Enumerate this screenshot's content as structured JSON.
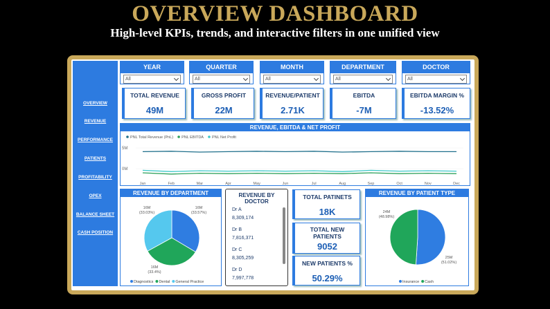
{
  "header": {
    "title": "OVERVIEW DASHBOARD",
    "subtitle": "High-level KPIs, trends, and interactive filters in one unified view"
  },
  "nav": [
    "OVERVIEW",
    "REVENUE",
    "PERFORMANCE",
    "PATIENTS",
    "PROFITABILITY",
    "OPEX",
    "BALANCE SHEET",
    "CASH POSITION"
  ],
  "filters": [
    {
      "label": "YEAR",
      "value": "All"
    },
    {
      "label": "QUARTER",
      "value": "All"
    },
    {
      "label": "MONTH",
      "value": "All"
    },
    {
      "label": "DEPARTMENT",
      "value": "All"
    },
    {
      "label": "DOCTOR",
      "value": "All"
    }
  ],
  "kpis": [
    {
      "label": "TOTAL REVENUE",
      "value": "49M"
    },
    {
      "label": "GROSS PROFIT",
      "value": "22M"
    },
    {
      "label": "REVENUE/PATIENT",
      "value": "2.71K"
    },
    {
      "label": "EBITDA",
      "value": "-7M"
    },
    {
      "label": "EBITDA MARGIN %",
      "value": "-13.52%"
    }
  ],
  "trend_chart": {
    "type": "line",
    "title": "REVENUE, EBITDA & NET PROFIT",
    "x": [
      "Jan",
      "Feb",
      "Mar",
      "Apr",
      "May",
      "Jun",
      "Jul",
      "Aug",
      "Sep",
      "Oct",
      "Nov",
      "Dec"
    ],
    "series": [
      {
        "name": "PNL Total Revenue (PnL)",
        "color": "#1f6f8b",
        "values": [
          4.1,
          4.2,
          4.0,
          4.1,
          4.2,
          4.1,
          4.2,
          4.0,
          4.1,
          4.2,
          4.1,
          4.1
        ]
      },
      {
        "name": "PNL EBITDA",
        "color": "#2ca05a",
        "values": [
          -1.0,
          -1.3,
          -1.1,
          -1.2,
          -1.1,
          -1.2,
          -1.1,
          -1.2,
          -1.0,
          -1.2,
          -1.1,
          -1.2
        ]
      },
      {
        "name": "PNL Net Profit",
        "color": "#3cc8c8",
        "values": [
          -0.4,
          -0.7,
          -0.5,
          -0.6,
          -0.5,
          -0.6,
          -0.5,
          -0.7,
          -0.4,
          -0.6,
          -0.5,
          -0.6
        ]
      }
    ],
    "ylim": [
      -2,
      8
    ],
    "yticks": [
      {
        "value": 0,
        "label": "0M"
      },
      {
        "value": 5,
        "label": "5M"
      }
    ]
  },
  "department_chart": {
    "type": "pie",
    "title": "REVENUE BY DEPARTMENT",
    "categories": [
      "Diagnostics",
      "Dental",
      "General Practice"
    ],
    "values": [
      33.57,
      33.4,
      33.03
    ],
    "value_labels": [
      "(33.57%)",
      "(33.4%)",
      "(33.03%)"
    ],
    "amount_labels": [
      "16M",
      "16M",
      "16M"
    ],
    "colors": [
      "#2f7de1",
      "#20a65a",
      "#55c8ee"
    ]
  },
  "doctor_table": {
    "title": "REVENUE BY DOCTOR",
    "rows": [
      [
        "Dr A",
        "8,309,174"
      ],
      [
        "Dr B",
        "7,816,371"
      ],
      [
        "Dr C",
        "8,305,259"
      ],
      [
        "Dr D",
        "7,997,778"
      ]
    ]
  },
  "patient_kpis": [
    {
      "label": "TOTAL PATINETS",
      "value": "18K"
    },
    {
      "label": "TOTAL NEW PATIENTS",
      "value": "9052"
    },
    {
      "label": "NEW PATIENTS %",
      "value": "50.29%"
    }
  ],
  "patient_type_chart": {
    "type": "pie",
    "title": "REVENUE BY PATIENT TYPE",
    "categories": [
      "Insurance",
      "Cash"
    ],
    "values": [
      51.02,
      48.98
    ],
    "value_labels": [
      "(51.02%)",
      "(48.98%)"
    ],
    "amount_labels": [
      "25M",
      "24M"
    ],
    "colors": [
      "#2f7de1",
      "#20a65a"
    ]
  }
}
